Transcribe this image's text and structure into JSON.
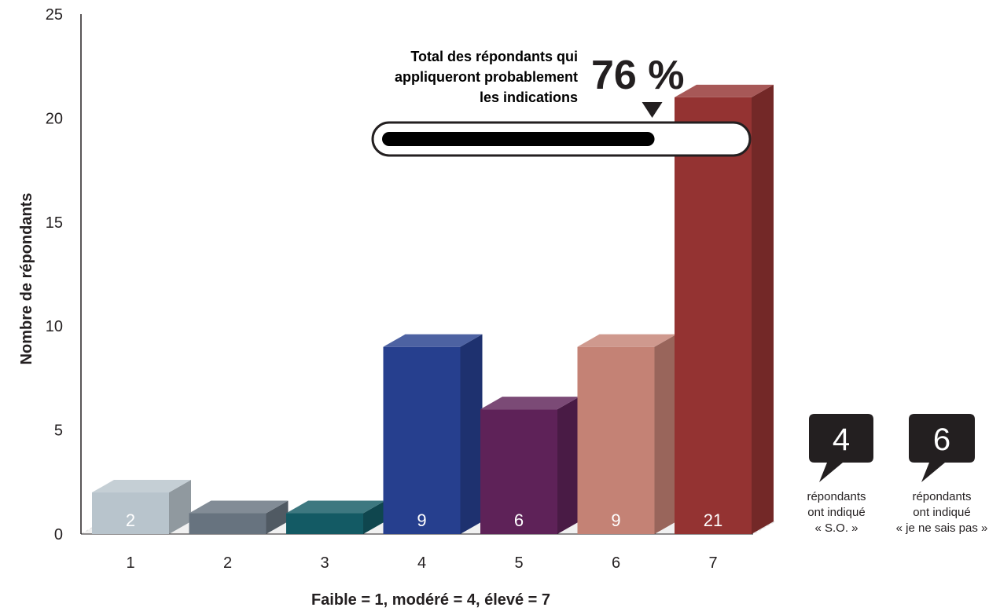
{
  "chart_data": {
    "type": "bar",
    "categories": [
      "1",
      "2",
      "3",
      "4",
      "5",
      "6",
      "7"
    ],
    "values": [
      2,
      1,
      1,
      9,
      6,
      9,
      21
    ],
    "data_labels": [
      "2",
      "",
      "",
      "9",
      "6",
      "9",
      "21"
    ],
    "colors": [
      "#b8c4cc",
      "#67737f",
      "#135a64",
      "#263f8e",
      "#5e2258",
      "#c48275",
      "#943332"
    ],
    "xlabel": "Faible = 1, modéré = 4, élevé = 7",
    "ylabel": "Nombre de répondants",
    "ylim": [
      0,
      25
    ],
    "yticks": [
      "0",
      "5",
      "10",
      "15",
      "20",
      "25"
    ],
    "grid": false
  },
  "callout": {
    "title_lines": [
      "Total des répondants qui",
      "appliqueront probablement",
      "les indications"
    ],
    "percent_text": "76 %",
    "percent_value": 0.76
  },
  "bubbles": [
    {
      "number": "4",
      "caption_lines": [
        "répondants",
        "ont indiqué",
        "« S.O. »"
      ]
    },
    {
      "number": "6",
      "caption_lines": [
        "répondants",
        "ont indiqué",
        "« je ne sais pas »"
      ]
    }
  ]
}
